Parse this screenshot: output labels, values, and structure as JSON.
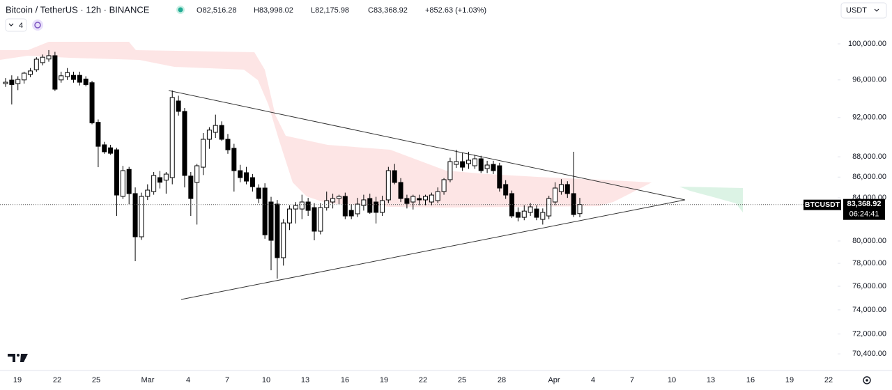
{
  "header": {
    "symbol": "Bitcoin / TetherUS · 12h · BINANCE",
    "ohlc": [
      "O82,516.28",
      "H83,998.02",
      "L82,175.98",
      "C83,368.92"
    ],
    "change": "+852.63 (+1.03%)",
    "indicators_count": "4",
    "currency": "USDT"
  },
  "price_tag": {
    "symbol": "BTCUSDT",
    "price": "83,368.92",
    "countdown": "06:24:41"
  },
  "chart_data": {
    "type": "candlestick",
    "title": "Bitcoin / TetherUS · 12h · BINANCE",
    "log_scale": true,
    "up_color": "#ffffff",
    "down_color": "#000000",
    "edge_color": "#000000",
    "x_labels": [
      "19",
      "22",
      "25",
      "Mar",
      "4",
      "7",
      "10",
      "13",
      "16",
      "19",
      "22",
      "25",
      "28",
      "Apr",
      "4",
      "7",
      "10",
      "13",
      "16",
      "19",
      "22"
    ],
    "open": [
      95600,
      95980,
      95600,
      96000,
      96600,
      97120,
      97900,
      98300,
      98670,
      96000,
      96360,
      96500,
      96500,
      96100,
      95700,
      91500,
      89200,
      88900,
      88700,
      84140,
      86750,
      84410,
      80380,
      84140,
      84600,
      85950,
      85700,
      85950,
      93740,
      92640,
      86100,
      85480,
      86970,
      89760,
      90470,
      91180,
      89760,
      88850,
      86630,
      86430,
      85950,
      84940,
      84940,
      83610,
      83410,
      78500,
      81650,
      82950,
      82950,
      83610,
      83080,
      80890,
      83080,
      83610,
      83940,
      84140,
      82820,
      82500,
      83280,
      83940,
      83610,
      82630,
      83810,
      86630,
      85480,
      83940,
      83610,
      83940,
      83810,
      83610,
      83740,
      84600,
      85750,
      87250,
      87520,
      87320,
      87110,
      87800,
      86830,
      87250,
      87110,
      85280,
      84410,
      82630,
      82170,
      82630,
      82950,
      81980,
      82300,
      83610,
      84600,
      85280,
      84410,
      82516.28
    ],
    "high": [
      96200,
      96500,
      96400,
      96900,
      97300,
      98500,
      98800,
      99300,
      99100,
      96900,
      97300,
      96900,
      96900,
      96400,
      95900,
      91800,
      89500,
      89200,
      88900,
      87100,
      87000,
      85000,
      84500,
      85300,
      86500,
      86600,
      86500,
      94860,
      94300,
      93000,
      86500,
      87300,
      90400,
      91000,
      92300,
      91600,
      90300,
      89300,
      87200,
      87000,
      86300,
      85300,
      85400,
      84100,
      83800,
      82000,
      83300,
      83600,
      84300,
      84000,
      83500,
      83500,
      84600,
      84400,
      84300,
      84500,
      83400,
      84000,
      84300,
      84400,
      84100,
      84200,
      87000,
      87300,
      85900,
      84300,
      84300,
      84300,
      84300,
      84500,
      85000,
      85900,
      87900,
      88700,
      88400,
      88500,
      88200,
      88100,
      87600,
      87600,
      87400,
      85700,
      84700,
      83100,
      83300,
      83500,
      83300,
      83000,
      84200,
      85500,
      85800,
      85600,
      88500,
      83998.02
    ],
    "low": [
      95250,
      93370,
      94900,
      95600,
      96300,
      96900,
      97600,
      98000,
      94800,
      95700,
      96000,
      95700,
      95400,
      95300,
      91300,
      86970,
      88300,
      88200,
      82300,
      83900,
      83400,
      78190,
      80100,
      83800,
      84300,
      84900,
      84400,
      85300,
      92200,
      85000,
      82300,
      81500,
      86200,
      88800,
      89900,
      89600,
      88300,
      84600,
      85500,
      85300,
      84600,
      83500,
      80200,
      77390,
      76660,
      77800,
      81000,
      81600,
      82000,
      82300,
      80060,
      80600,
      82800,
      83000,
      83400,
      82000,
      82000,
      82200,
      82800,
      82500,
      81600,
      82300,
      83500,
      85300,
      83600,
      83000,
      82900,
      83300,
      83300,
      83300,
      83500,
      84300,
      85500,
      86900,
      86600,
      86800,
      86800,
      86400,
      86400,
      86300,
      84600,
      83900,
      82100,
      81800,
      81900,
      82300,
      81900,
      81500,
      82000,
      83300,
      84300,
      84000,
      82200,
      82175.98
    ],
    "close": [
      95750,
      95500,
      96050,
      96740,
      96980,
      98280,
      98500,
      98670,
      95000,
      96450,
      96800,
      96050,
      95750,
      95500,
      91450,
      89050,
      88500,
      88350,
      84270,
      86630,
      84410,
      80380,
      84140,
      84740,
      86160,
      85500,
      86290,
      94110,
      92640,
      86160,
      83940,
      87110,
      89760,
      90700,
      91180,
      89760,
      88700,
      86630,
      85950,
      85610,
      85070,
      83940,
      80560,
      80060,
      78500,
      81650,
      82950,
      83280,
      83610,
      82820,
      80890,
      83080,
      83740,
      83940,
      84140,
      82300,
      82300,
      83410,
      83810,
      82630,
      82630,
      83740,
      86630,
      85480,
      83940,
      83470,
      84140,
      83810,
      84140,
      84270,
      84600,
      85750,
      87520,
      87520,
      86970,
      87660,
      87800,
      86630,
      87180,
      86630,
      84940,
      84270,
      82300,
      82170,
      82750,
      83150,
      82170,
      82630,
      83940,
      84940,
      85280,
      84410,
      82430,
      83368.92
    ],
    "ylim": [
      69470,
      101830
    ],
    "yticks": [
      {
        "value": 100000,
        "label": "100,000.00"
      },
      {
        "value": 96000,
        "label": "96,000.00"
      },
      {
        "value": 92000,
        "label": "92,000.00"
      },
      {
        "value": 88000,
        "label": "88,000.00"
      },
      {
        "value": 86000,
        "label": "86,000.00"
      },
      {
        "value": 84000,
        "label": "84,000.00"
      },
      {
        "value": 80000,
        "label": "80,000.00"
      },
      {
        "value": 78000,
        "label": "78,000.00"
      },
      {
        "value": 76000,
        "label": "76,000.00"
      },
      {
        "value": 74000,
        "label": "74,000.00"
      },
      {
        "value": 72000,
        "label": "72,000.00"
      },
      {
        "value": 70400,
        "label": "70,400.00"
      }
    ]
  }
}
